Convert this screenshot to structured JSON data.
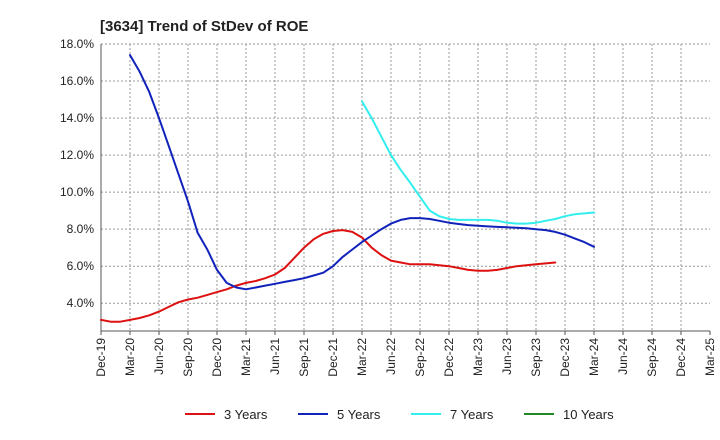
{
  "chart_data": {
    "type": "line",
    "title": "[3634]  Trend of StDev of ROE",
    "xlabel": "",
    "ylabel": "",
    "x_ticks": [
      "Dec-19",
      "Mar-20",
      "Jun-20",
      "Sep-20",
      "Dec-20",
      "Mar-21",
      "Jun-21",
      "Sep-21",
      "Dec-21",
      "Mar-22",
      "Jun-22",
      "Sep-22",
      "Dec-22",
      "Mar-23",
      "Jun-23",
      "Sep-23",
      "Dec-23",
      "Mar-24",
      "Jun-24",
      "Sep-24",
      "Dec-24",
      "Mar-25"
    ],
    "y_ticks": [
      "4.0%",
      "6.0%",
      "8.0%",
      "10.0%",
      "12.0%",
      "14.0%",
      "16.0%",
      "18.0%"
    ],
    "ylim": [
      2.5,
      18.0
    ],
    "grid": true,
    "legend_position": "bottom",
    "series": [
      {
        "name": "3 Years",
        "color": "#dd1111",
        "start_index": 0,
        "values": [
          3.1,
          3.0,
          3.0,
          3.1,
          3.2,
          3.35,
          3.55,
          3.8,
          4.05,
          4.2,
          4.3,
          4.45,
          4.6,
          4.75,
          4.95,
          5.1,
          5.2,
          5.35,
          5.55,
          5.9,
          6.45,
          7.0,
          7.45,
          7.75,
          7.9,
          7.95,
          7.85,
          7.55,
          7.0,
          6.6,
          6.3,
          6.2,
          6.1,
          6.1,
          6.1,
          6.05,
          6.0,
          5.9,
          5.8,
          5.75,
          5.75,
          5.8,
          5.9,
          6.0,
          6.05,
          6.1,
          6.15,
          6.2
        ]
      },
      {
        "name": "5 Years",
        "color": "#1122bb",
        "start_index": 3,
        "values": [
          17.4,
          16.5,
          15.4,
          14.0,
          12.5,
          11.0,
          9.5,
          7.8,
          6.9,
          5.8,
          5.1,
          4.85,
          4.75,
          4.85,
          4.95,
          5.05,
          5.15,
          5.25,
          5.35,
          5.5,
          5.65,
          6.0,
          6.5,
          6.9,
          7.3,
          7.65,
          8.0,
          8.3,
          8.5,
          8.6,
          8.6,
          8.55,
          8.45,
          8.35,
          8.28,
          8.22,
          8.18,
          8.15,
          8.12,
          8.1,
          8.08,
          8.05,
          8.0,
          7.95,
          7.85,
          7.7,
          7.5,
          7.3,
          7.05
        ]
      },
      {
        "name": "7 Years",
        "color": "#33eeee",
        "start_index": 27,
        "values": [
          14.9,
          14.0,
          13.0,
          12.0,
          11.2,
          10.5,
          9.75,
          9.0,
          8.7,
          8.55,
          8.5,
          8.5,
          8.5,
          8.5,
          8.45,
          8.35,
          8.3,
          8.3,
          8.35,
          8.45,
          8.55,
          8.7,
          8.8,
          8.85,
          8.9
        ]
      },
      {
        "name": "10 Years",
        "color": "#228822",
        "start_index": 0,
        "values": []
      }
    ]
  }
}
